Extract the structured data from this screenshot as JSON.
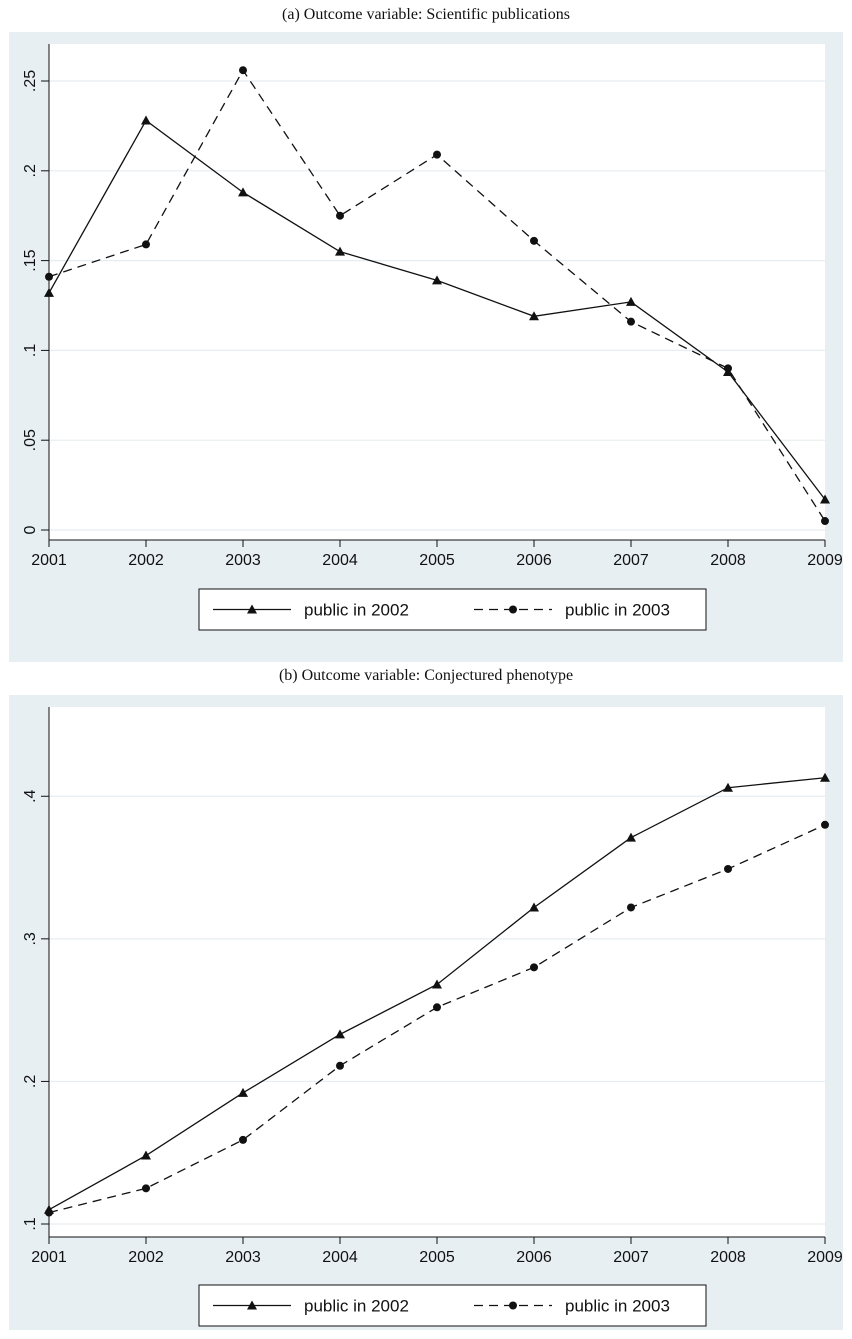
{
  "chart_data": [
    {
      "type": "line",
      "title": "(a) Outcome variable: Scientific publications",
      "xlabel": "",
      "ylabel": "",
      "x": [
        2001,
        2002,
        2003,
        2004,
        2005,
        2006,
        2007,
        2008,
        2009
      ],
      "xlim": [
        2001,
        2009
      ],
      "ylim": [
        0,
        0.25
      ],
      "yticks": [
        0,
        0.05,
        0.1,
        0.15,
        0.2,
        0.25
      ],
      "ytick_labels": [
        "0",
        ".05",
        ".1",
        ".15",
        ".2",
        ".25"
      ],
      "xtick_labels": [
        "2001",
        "2002",
        "2003",
        "2004",
        "2005",
        "2006",
        "2007",
        "2008",
        "2009"
      ],
      "grid": true,
      "legend": "bottom",
      "series": [
        {
          "name": "public in 2002",
          "marker": "triangle",
          "line": "solid",
          "values": [
            0.132,
            0.228,
            0.188,
            0.155,
            0.139,
            0.119,
            0.127,
            0.088,
            0.017
          ]
        },
        {
          "name": "public in 2003",
          "marker": "circle",
          "line": "dashed",
          "values": [
            0.141,
            0.159,
            0.256,
            0.175,
            0.209,
            0.161,
            0.116,
            0.09,
            0.005
          ]
        }
      ]
    },
    {
      "type": "line",
      "title": "(b) Outcome variable: Conjectured phenotype",
      "xlabel": "",
      "ylabel": "",
      "x": [
        2001,
        2002,
        2003,
        2004,
        2005,
        2006,
        2007,
        2008,
        2009
      ],
      "xlim": [
        2001,
        2009
      ],
      "ylim": [
        0.1,
        0.41
      ],
      "yticks": [
        0.1,
        0.2,
        0.3,
        0.4
      ],
      "ytick_labels": [
        ".1",
        ".2",
        ".3",
        ".4"
      ],
      "xtick_labels": [
        "2001",
        "2002",
        "2003",
        "2004",
        "2005",
        "2006",
        "2007",
        "2008",
        "2009"
      ],
      "grid": true,
      "legend": "bottom",
      "series": [
        {
          "name": "public in 2002",
          "marker": "triangle",
          "line": "solid",
          "values": [
            0.11,
            0.148,
            0.192,
            0.233,
            0.268,
            0.322,
            0.371,
            0.406,
            0.413
          ]
        },
        {
          "name": "public in 2003",
          "marker": "circle",
          "line": "dashed",
          "values": [
            0.108,
            0.125,
            0.159,
            0.211,
            0.252,
            0.28,
            0.322,
            0.349,
            0.38
          ]
        }
      ]
    }
  ],
  "colors": {
    "panel_bg": "#e8eff3",
    "plot_bg": "#ffffff",
    "grid": "#e6edf1",
    "ink": "#111111"
  }
}
